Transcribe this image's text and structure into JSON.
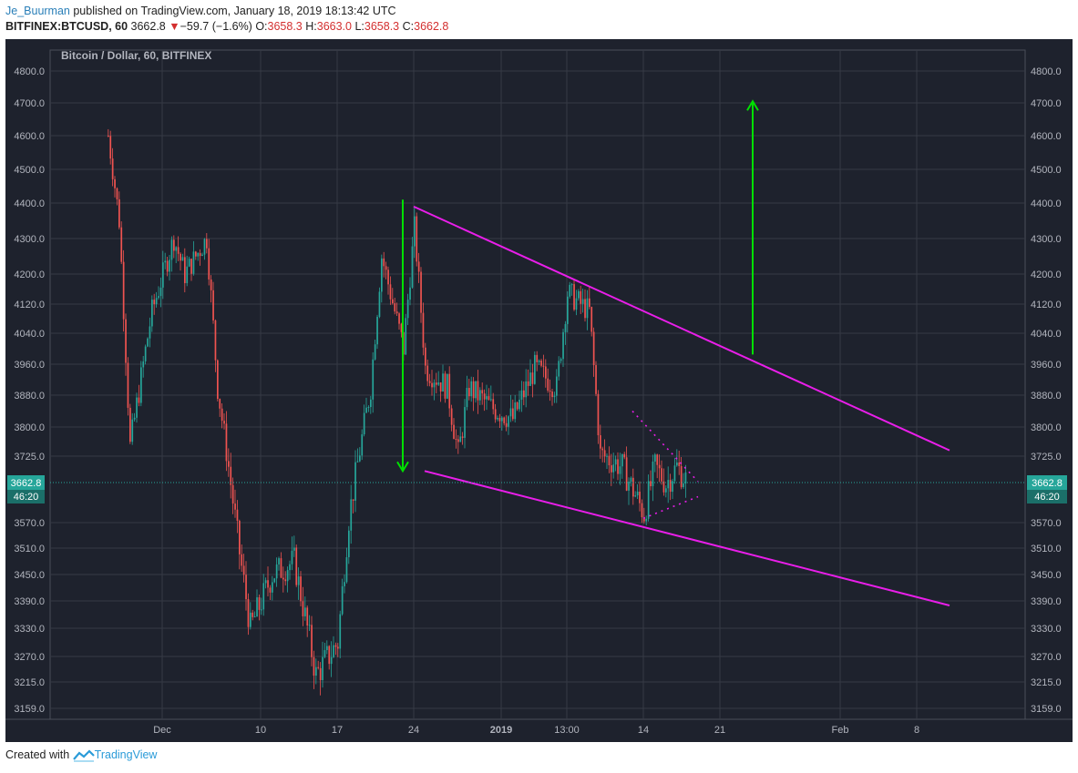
{
  "header": {
    "author": "Je_Buurman",
    "published_text": "published on TradingView.com, January 18, 2019 18:13:42 UTC",
    "symbol": "BITFINEX:BTCUSD, 60",
    "last": "3662.8",
    "change": "−59.7 (−1.6%)",
    "o_label": "O:",
    "o": "3658.3",
    "h_label": "H:",
    "h": "3663.0",
    "l_label": "L:",
    "l": "3658.3",
    "c_label": "C:",
    "c": "3662.8"
  },
  "footer": {
    "created_with": "Created with",
    "brand": "TradingView"
  },
  "colors": {
    "background": "#1e222d",
    "grid": "#363a45",
    "up": "#26a69a",
    "down": "#ef5350",
    "trendline": "#e91ee9",
    "arrow": "#00e000",
    "price_label": "#26a69a"
  },
  "chart_data": {
    "type": "candlestick",
    "title": "Bitcoin / Dollar, 60, BITFINEX",
    "y_ticks": [
      "4800.0",
      "4700.0",
      "4600.0",
      "4500.0",
      "4400.0",
      "4300.0",
      "4200.0",
      "4120.0",
      "4040.0",
      "3960.0",
      "3880.0",
      "3800.0",
      "3725.0",
      "3662.8",
      "3570.0",
      "3510.0",
      "3450.0",
      "3390.0",
      "3330.0",
      "3270.0",
      "3215.0",
      "3159.0"
    ],
    "x_ticks": [
      "Dec",
      "10",
      "17",
      "24",
      "2019",
      "13:00",
      "14",
      "21",
      "Feb",
      "8"
    ],
    "last_price": "3662.8",
    "countdown": "46:20",
    "grid": true,
    "price_path": [
      [
        "2018-11-26",
        4600
      ],
      [
        "2018-11-27",
        4350
      ],
      [
        "2018-11-28",
        3750
      ],
      [
        "2018-11-30",
        4100
      ],
      [
        "2018-12-02",
        4300
      ],
      [
        "2018-12-03",
        4200
      ],
      [
        "2018-12-05",
        4300
      ],
      [
        "2018-12-06",
        3900
      ],
      [
        "2018-12-08",
        3500
      ],
      [
        "2018-12-09",
        3330
      ],
      [
        "2018-12-11",
        3450
      ],
      [
        "2018-12-13",
        3480
      ],
      [
        "2018-12-15",
        3230
      ],
      [
        "2018-12-17",
        3300
      ],
      [
        "2018-12-18",
        3580
      ],
      [
        "2018-12-20",
        3900
      ],
      [
        "2018-12-21",
        4250
      ],
      [
        "2018-12-23",
        4000
      ],
      [
        "2018-12-24",
        4330
      ],
      [
        "2018-12-25",
        3950
      ],
      [
        "2018-12-27",
        3900
      ],
      [
        "2018-12-28",
        3730
      ],
      [
        "2018-12-29",
        3900
      ],
      [
        "2018-12-31",
        3850
      ],
      [
        "2019-01-02",
        3820
      ],
      [
        "2019-01-04",
        3950
      ],
      [
        "2019-01-06",
        3900
      ],
      [
        "2019-01-07",
        4150
      ],
      [
        "2019-01-09",
        4100
      ],
      [
        "2019-01-10",
        3730
      ],
      [
        "2019-01-12",
        3700
      ],
      [
        "2019-01-14",
        3590
      ],
      [
        "2019-01-15",
        3700
      ],
      [
        "2019-01-16",
        3660
      ],
      [
        "2019-01-17",
        3700
      ],
      [
        "2019-01-18",
        3662.8
      ]
    ],
    "annotations": {
      "upper_trendline": [
        [
          "2018-12-24",
          4390
        ],
        [
          "2019-02-11",
          3740
        ]
      ],
      "lower_trendline": [
        [
          "2018-12-25",
          3690
        ],
        [
          "2019-02-11",
          3380
        ]
      ],
      "triangle_upper": [
        [
          "2019-01-13",
          3840
        ],
        [
          "2019-01-19",
          3665
        ]
      ],
      "triangle_lower": [
        [
          "2019-01-14",
          3580
        ],
        [
          "2019-01-19",
          3630
        ]
      ],
      "down_arrow": [
        [
          "2018-12-23",
          4410
        ],
        [
          "2018-12-23",
          3690
        ]
      ],
      "up_arrow": [
        [
          "2019-01-24",
          3985
        ],
        [
          "2019-01-24",
          4705
        ]
      ]
    }
  }
}
